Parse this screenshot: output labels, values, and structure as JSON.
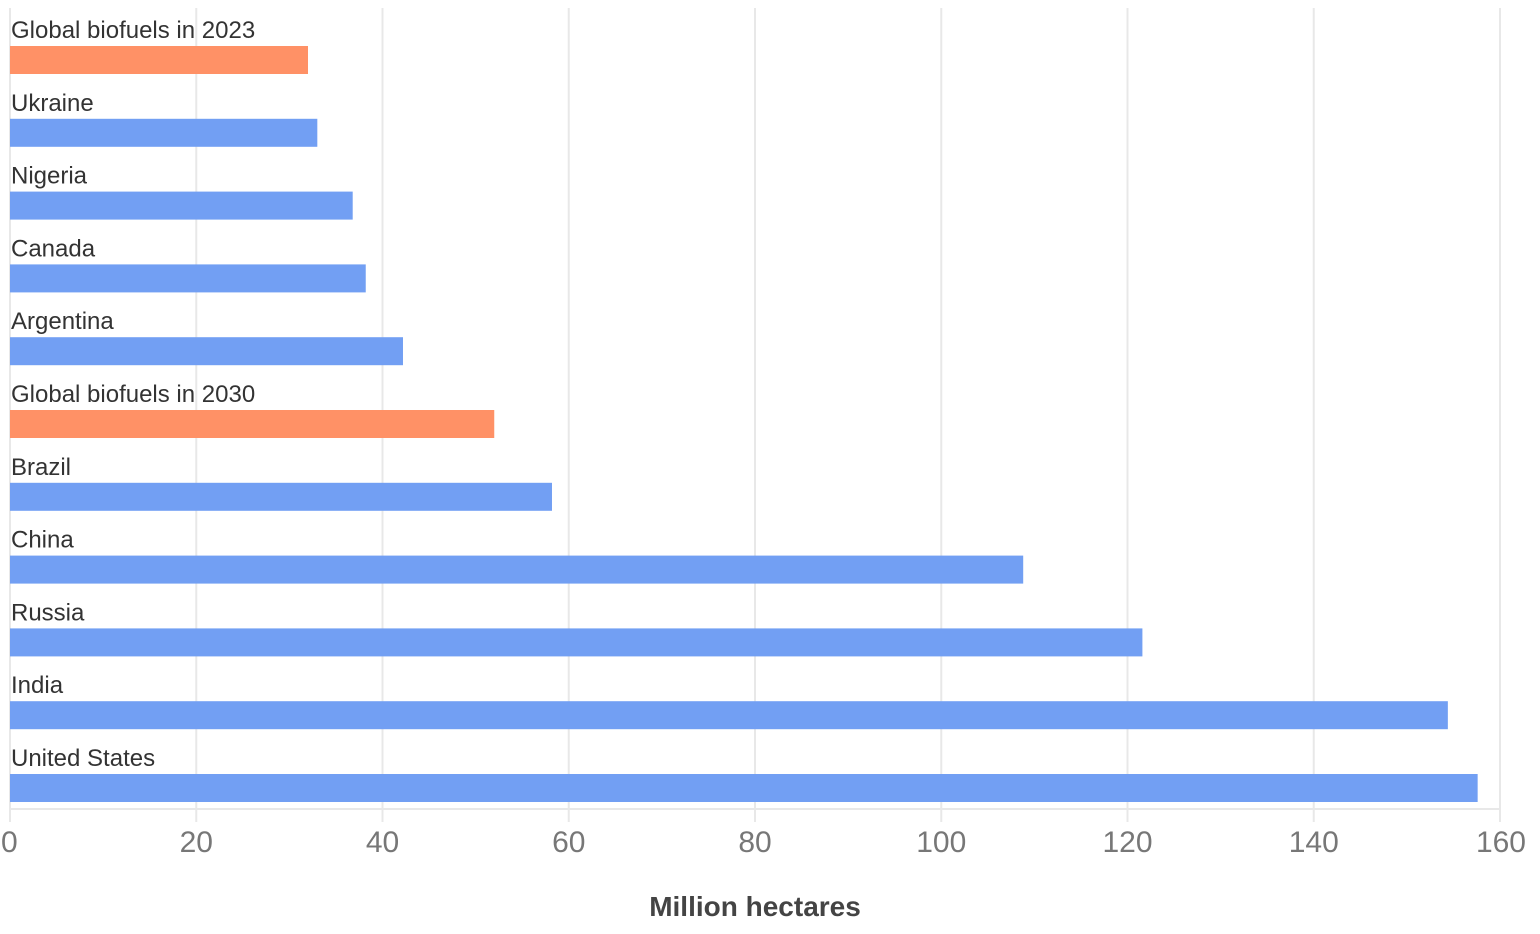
{
  "chart_data": {
    "type": "bar",
    "orientation": "horizontal",
    "categories": [
      "Global biofuels in 2023",
      "Ukraine",
      "Nigeria",
      "Canada",
      "Argentina",
      "Global biofuels in 2030",
      "Brazil",
      "China",
      "Russia",
      "India",
      "United States"
    ],
    "values": [
      32.0,
      33.0,
      36.8,
      38.2,
      42.2,
      52.0,
      58.2,
      108.8,
      121.6,
      154.4,
      157.6
    ],
    "highlight": [
      true,
      false,
      false,
      false,
      false,
      true,
      false,
      false,
      false,
      false,
      false
    ],
    "colors": {
      "default": "#729ff3",
      "highlight": "#ff9166",
      "grid": "#e8e8e8"
    },
    "xlabel": "Million hectares",
    "xlim": [
      0,
      160
    ],
    "xticks": [
      "0",
      "20",
      "40",
      "60",
      "80",
      "100",
      "120",
      "140",
      "160"
    ],
    "grid": true
  }
}
